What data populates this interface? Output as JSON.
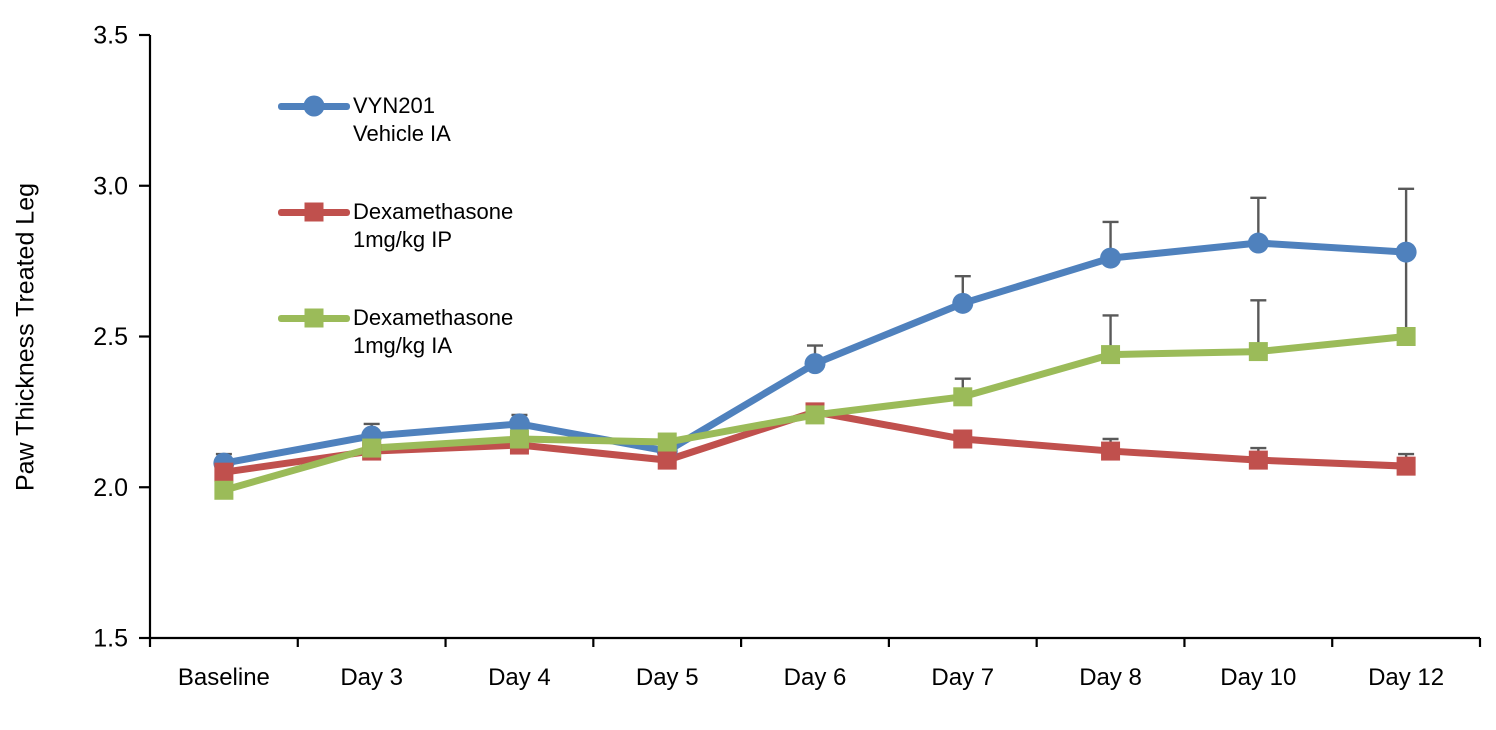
{
  "chart_data": {
    "type": "line",
    "title": "",
    "xlabel": "",
    "ylabel": "Paw Thickness Treated Leg",
    "ylim": [
      1.5,
      3.5
    ],
    "grid": false,
    "legend_position": "upper-left-inside",
    "axis_color": "#000000",
    "error_color": "#595959",
    "yticks": [
      {
        "label": "3.5",
        "value": 3.5
      },
      {
        "label": "3.0",
        "value": 3.0
      },
      {
        "label": "2.5",
        "value": 2.5
      },
      {
        "label": "2.0",
        "value": 2.0
      },
      {
        "label": "1.5",
        "value": 1.5
      }
    ],
    "categories": [
      "Baseline",
      "Day 3",
      "Day 4",
      "Day 5",
      "Day 6",
      "Day 7",
      "Day 8",
      "Day 10",
      "Day 12"
    ],
    "series": [
      {
        "name": "VYN201 Vehicle IA",
        "legend_lines": [
          "VYN201",
          "Vehicle IA"
        ],
        "color": "#4f81bd",
        "marker": "circle",
        "values": [
          2.08,
          2.17,
          2.21,
          2.12,
          2.41,
          2.61,
          2.76,
          2.81,
          2.78
        ],
        "error_up": [
          0.03,
          0.04,
          0.03,
          0,
          0.06,
          0.09,
          0.12,
          0.15,
          0.21
        ]
      },
      {
        "name": "Dexamethasone 1mg/kg IP",
        "legend_lines": [
          "Dexamethasone",
          "1mg/kg IP"
        ],
        "color": "#c0504d",
        "marker": "square",
        "values": [
          2.05,
          2.12,
          2.14,
          2.09,
          2.25,
          2.16,
          2.12,
          2.09,
          2.07
        ],
        "error_up": [
          0,
          0,
          0,
          0,
          0,
          0,
          0.04,
          0.04,
          0.04
        ]
      },
      {
        "name": "Dexamethasone 1mg/kg IA",
        "legend_lines": [
          "Dexamethasone",
          "1mg/kg IA"
        ],
        "color": "#9bbb59",
        "marker": "square",
        "values": [
          1.99,
          2.13,
          2.16,
          2.15,
          2.24,
          2.3,
          2.44,
          2.45,
          2.5
        ],
        "error_up": [
          0,
          0,
          0,
          0,
          0,
          0.06,
          0.13,
          0.17,
          0.28
        ]
      }
    ]
  }
}
